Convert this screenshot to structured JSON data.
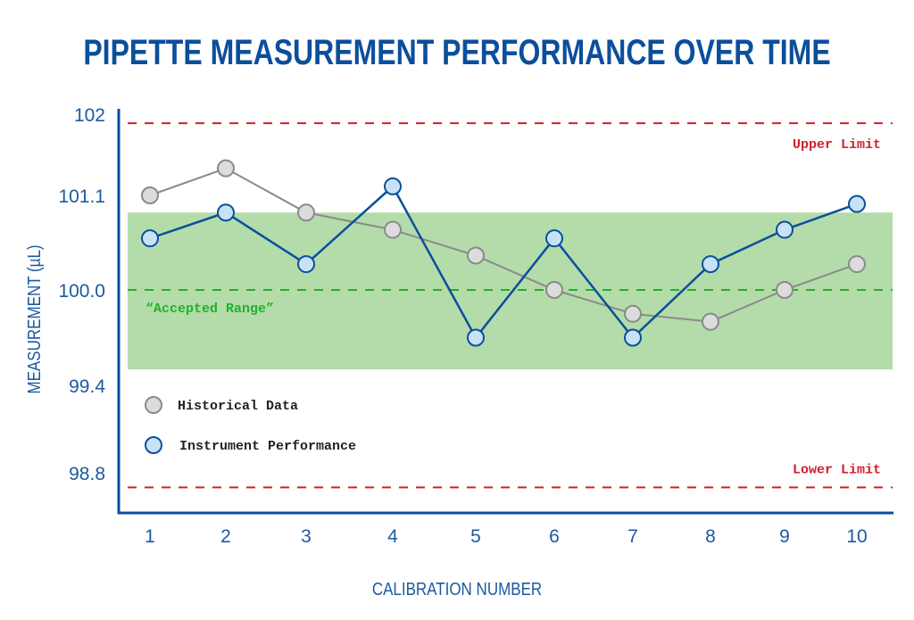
{
  "chart_data": {
    "type": "line",
    "title": "PIPETTE MEASUREMENT PERFORMANCE OVER TIME",
    "xlabel": "CALIBRATION NUMBER",
    "ylabel": "MEASUREMENT (µL)",
    "x": [
      1,
      2,
      3,
      4,
      5,
      6,
      7,
      8,
      9,
      10
    ],
    "y_ticks": [
      "102",
      "101.1",
      "100.0",
      "99.4",
      "98.8"
    ],
    "grid": false,
    "legend_placement": "lower-left inside",
    "series": [
      {
        "name": "Historical Data",
        "color": "#8a8a8a",
        "marker_fill": "#dcdcdc",
        "values": [
          101.1,
          101.4,
          100.9,
          100.7,
          100.4,
          100.0,
          99.85,
          99.8,
          100.0,
          100.3
        ]
      },
      {
        "name": "Instrument Performance",
        "color": "#0b4f9c",
        "marker_fill": "#c7e2f7",
        "values": [
          100.6,
          100.9,
          100.3,
          101.2,
          99.7,
          100.6,
          99.7,
          100.3,
          100.7,
          101.0
        ]
      }
    ],
    "reference_lines": [
      {
        "label": "Upper Limit",
        "value": 101.9,
        "color": "#d0202a"
      },
      {
        "label": "",
        "value": 100.0,
        "color": "#22b02a"
      },
      {
        "label": "Lower Limit",
        "value": 98.7,
        "color": "#d0202a"
      }
    ],
    "band": {
      "label": "“Accepted Range”",
      "from": 99.5,
      "to": 100.9,
      "color": "#b3dcaa",
      "label_color": "#22b02a"
    }
  }
}
